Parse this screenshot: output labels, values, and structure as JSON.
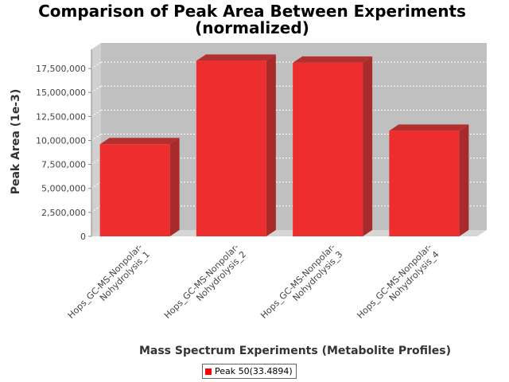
{
  "chart_data": {
    "type": "bar",
    "title": [
      "Comparison of Peak Area Between Experiments",
      "(normalized)"
    ],
    "xlabel": "Mass Spectrum Experiments (Metabolite Profiles)",
    "ylabel": "Peak Area (1e-3)",
    "categories": [
      [
        "Hops_GC-MS-Nonpolar-",
        "Nohydrolysis_1"
      ],
      [
        "Hops_GC-MS-Nonpolar-",
        "Nohydrolysis_2"
      ],
      [
        "Hops_GC-MS-Nonpolar-",
        "Nohydrolysis_3"
      ],
      [
        "Hops_GC-MS-Nonpolar-",
        "Nohydrolysis_4"
      ]
    ],
    "series": [
      {
        "name": "Peak 50(33.4894)",
        "values": [
          9600000,
          18300000,
          18100000,
          11000000
        ]
      }
    ],
    "yticks": [
      0,
      2500000,
      5000000,
      7500000,
      10000000,
      12500000,
      15000000,
      17500000
    ],
    "ytick_labels": [
      "0",
      "2,500,000",
      "5,000,000",
      "7,500,000",
      "10,000,000",
      "12,500,000",
      "15,000,000",
      "17,500,000"
    ],
    "ylim": [
      0,
      19000000
    ],
    "grid": true,
    "legend_position": "bottom-center",
    "colors": {
      "bar_front": "#ee2e2e",
      "bar_top": "#b43030",
      "bar_side": "#a82a2a",
      "plot_back": "#c0c0c0",
      "plot_floor": "#d6d6d6",
      "plot_left_wall": "#d0d0d0",
      "legend_swatch": "#ff0000"
    }
  }
}
